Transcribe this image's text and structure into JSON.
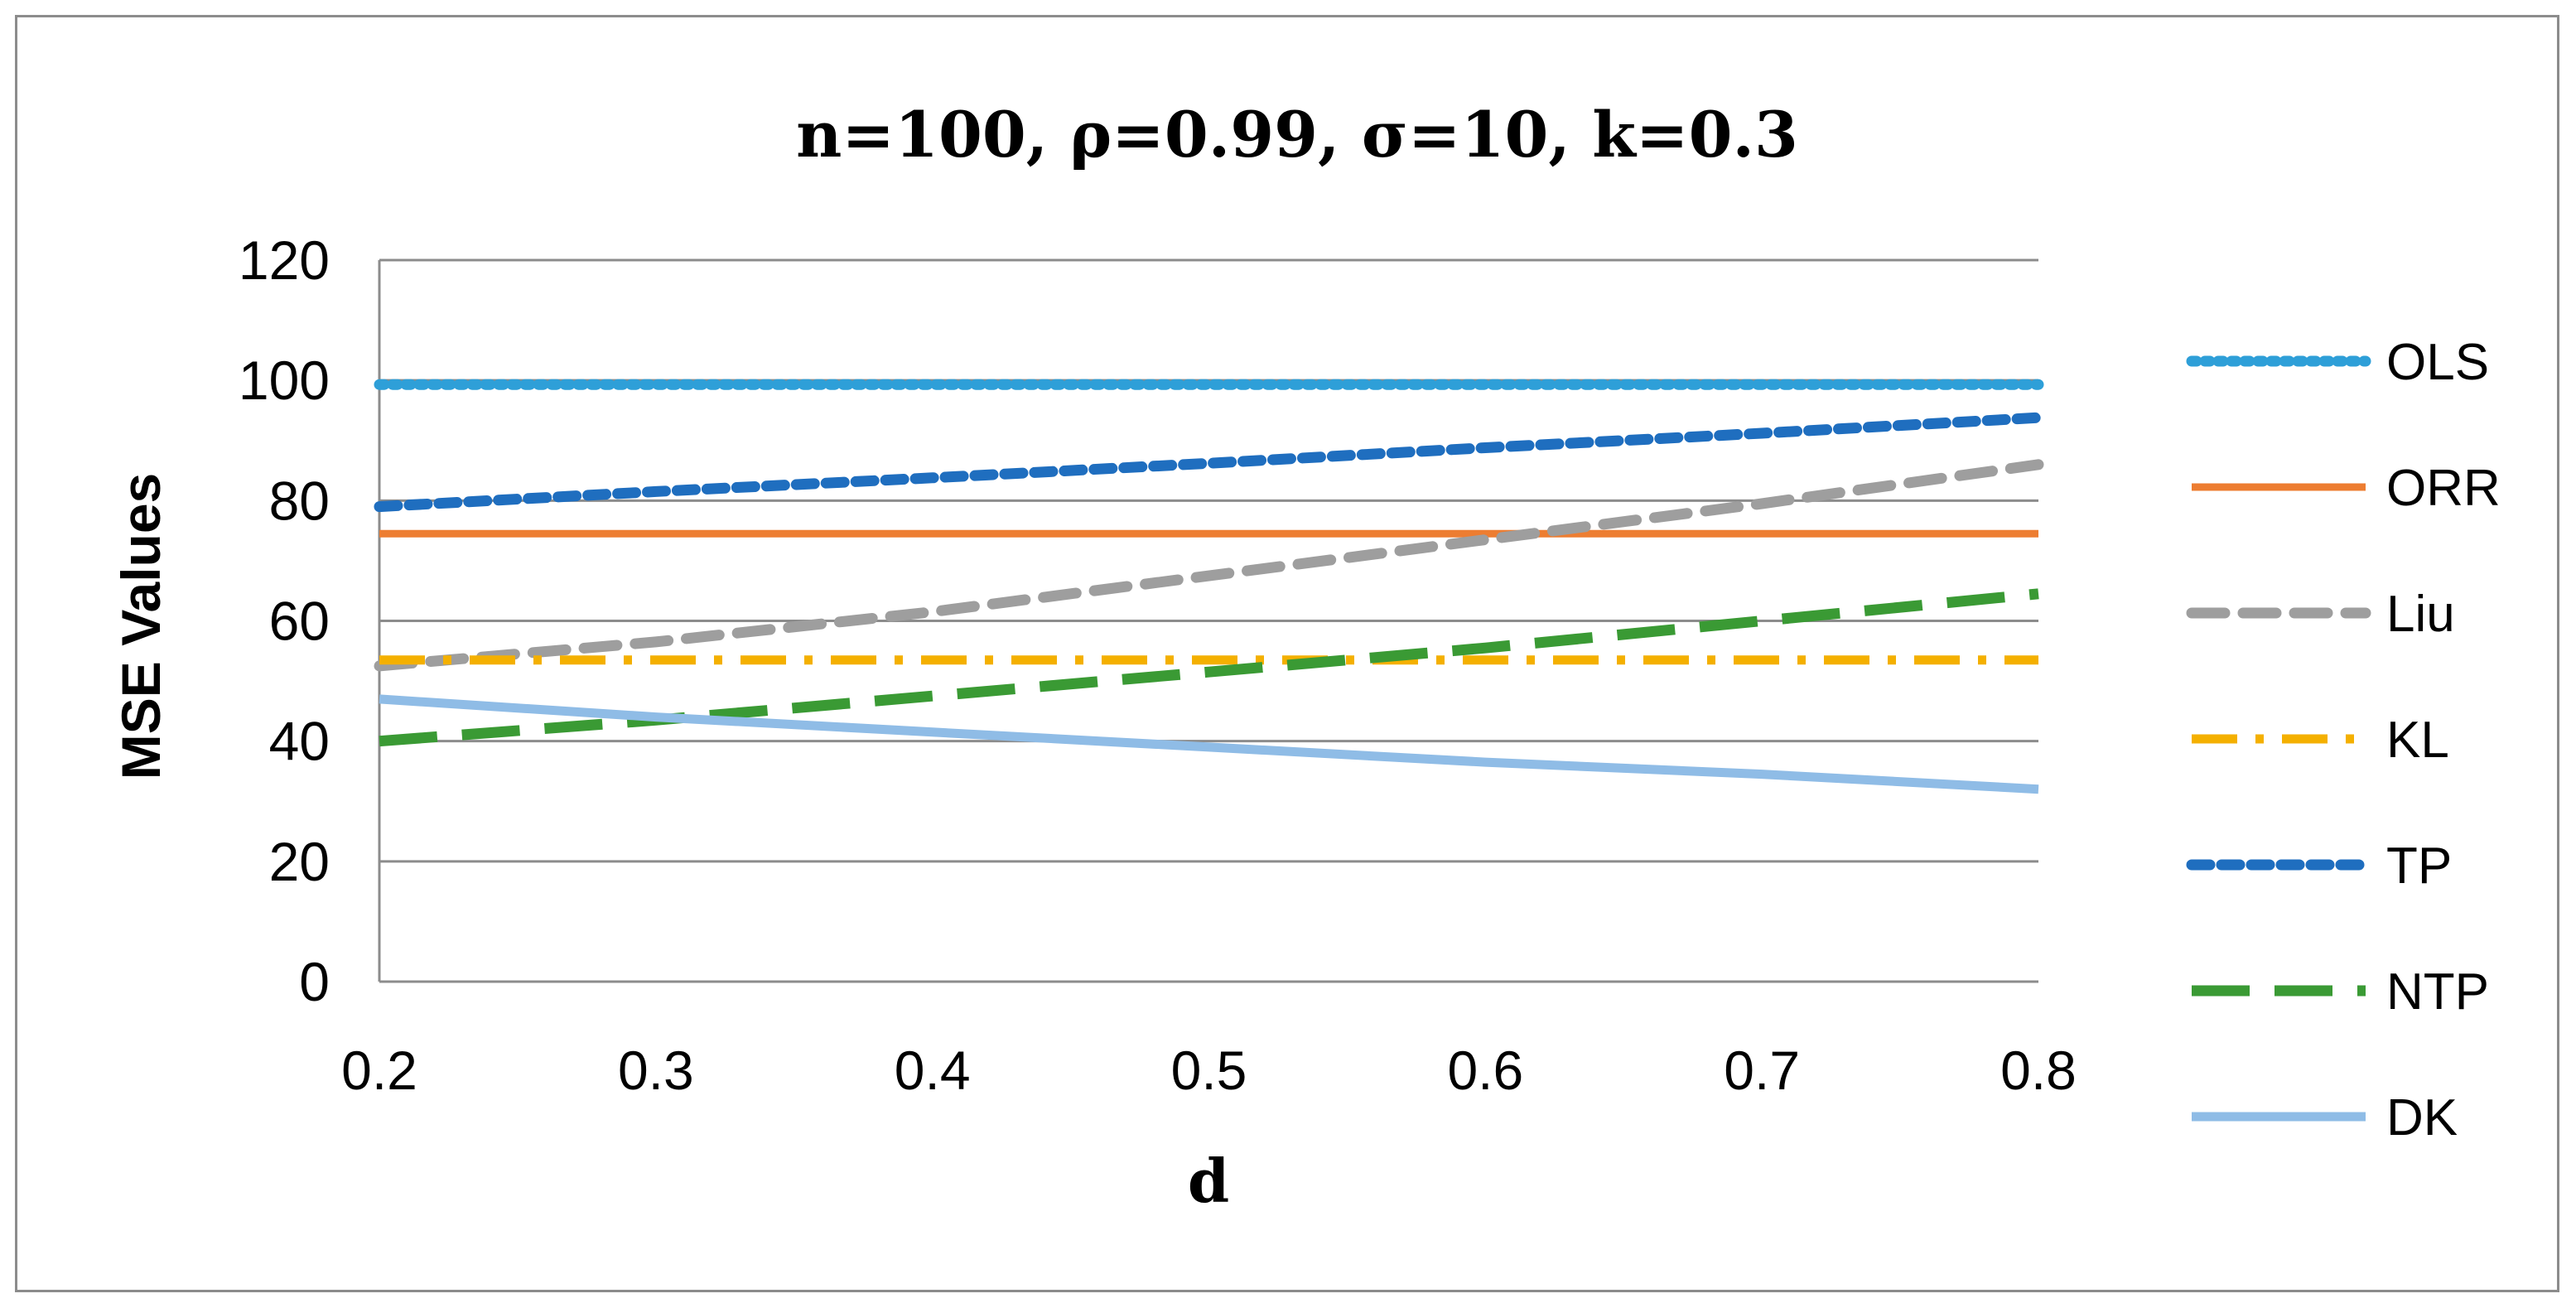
{
  "chart_data": {
    "type": "line",
    "title": "n=100, ρ=0.99, σ=10, k=0.3",
    "xlabel": "d",
    "ylabel": "MSE Values",
    "x": [
      0.2,
      0.3,
      0.4,
      0.5,
      0.6,
      0.7,
      0.8
    ],
    "x_tick_labels": [
      "0.2",
      "0.3",
      "0.4",
      "0.5",
      "0.6",
      "0.7",
      "0.8"
    ],
    "xlim": [
      0.2,
      0.8
    ],
    "ylim": [
      0,
      120
    ],
    "y_ticks": [
      0,
      20,
      40,
      60,
      80,
      100,
      120
    ],
    "y_tick_labels": [
      "0",
      "20",
      "40",
      "60",
      "80",
      "100",
      "120"
    ],
    "grid": "horizontal",
    "legend_position": "right",
    "series": [
      {
        "name": "OLS",
        "color": "#2e9fd8",
        "style": "dotted",
        "values": [
          99.3,
          99.3,
          99.3,
          99.3,
          99.3,
          99.3,
          99.3
        ]
      },
      {
        "name": "ORR",
        "color": "#ed7d31",
        "style": "solid",
        "values": [
          74.5,
          74.5,
          74.5,
          74.5,
          74.5,
          74.5,
          74.5
        ]
      },
      {
        "name": "Liu",
        "color": "#9e9e9e",
        "style": "dashed",
        "values": [
          52.5,
          56.5,
          61.5,
          67.5,
          73.5,
          79.5,
          86.0
        ]
      },
      {
        "name": "KL",
        "color": "#f4b000",
        "style": "dashdot",
        "values": [
          53.5,
          53.5,
          53.5,
          53.5,
          53.5,
          53.5,
          53.5
        ]
      },
      {
        "name": "TP",
        "color": "#1f6ebf",
        "style": "shortdash",
        "values": [
          79.0,
          81.5,
          83.8,
          86.2,
          88.8,
          91.2,
          93.8
        ]
      },
      {
        "name": "NTP",
        "color": "#3a9a34",
        "style": "longdash",
        "values": [
          40.0,
          43.5,
          47.5,
          51.5,
          55.5,
          60.0,
          64.5
        ]
      },
      {
        "name": "DK",
        "color": "#8fbce6",
        "style": "solid",
        "values": [
          47.0,
          44.0,
          41.5,
          39.0,
          36.5,
          34.5,
          32.0
        ]
      }
    ]
  }
}
